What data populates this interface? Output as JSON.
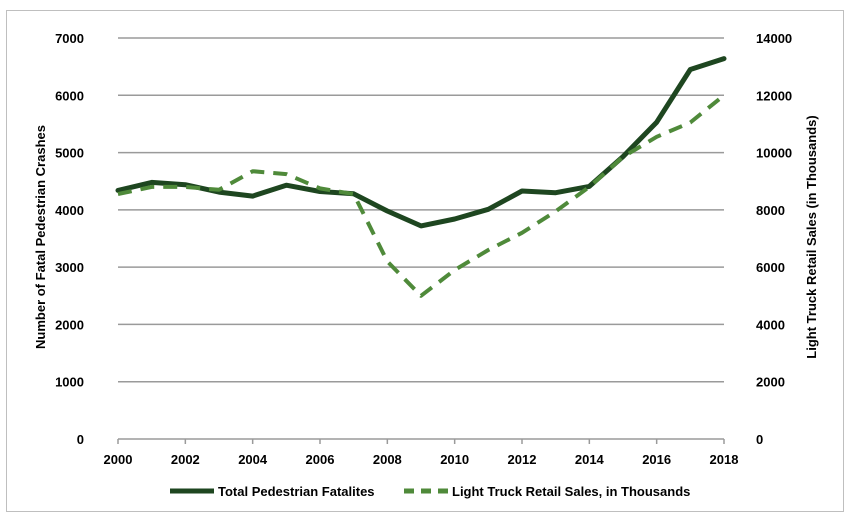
{
  "chart_data": {
    "type": "line",
    "x": [
      2000,
      2001,
      2002,
      2003,
      2004,
      2005,
      2006,
      2007,
      2008,
      2009,
      2010,
      2011,
      2012,
      2013,
      2014,
      2015,
      2016,
      2017,
      2018
    ],
    "x_ticks": [
      2000,
      2002,
      2004,
      2006,
      2008,
      2010,
      2012,
      2014,
      2016,
      2018
    ],
    "xlim": [
      2000,
      2018
    ],
    "ylabel": "Number of Fatal Pedestrian Crashes",
    "y2label": "Light Truck Retail Sales (in Thousands)",
    "ylim": [
      0,
      7000
    ],
    "y2lim": [
      0,
      14000
    ],
    "y_ticks": [
      0,
      1000,
      2000,
      3000,
      4000,
      5000,
      6000,
      7000
    ],
    "y2_ticks": [
      0,
      2000,
      4000,
      6000,
      8000,
      10000,
      12000,
      14000
    ],
    "grid": "horizontal",
    "legend_position": "bottom",
    "series": [
      {
        "name": "Total Pedestrian Fatalites",
        "axis": "left",
        "style": "solid",
        "color": "#1e4620",
        "values": [
          4340,
          4480,
          4440,
          4310,
          4240,
          4430,
          4320,
          4280,
          3980,
          3720,
          3840,
          4010,
          4330,
          4300,
          4410,
          4930,
          5530,
          6450,
          6640
        ]
      },
      {
        "name": "Light Truck Retail Sales, in Thousands",
        "axis": "right",
        "style": "dashed",
        "color": "#4f8a3a",
        "values": [
          8550,
          8800,
          8800,
          8700,
          9350,
          9250,
          8750,
          8550,
          6200,
          5000,
          5900,
          6600,
          7200,
          7950,
          8800,
          9850,
          10550,
          11050,
          12000
        ]
      }
    ]
  }
}
